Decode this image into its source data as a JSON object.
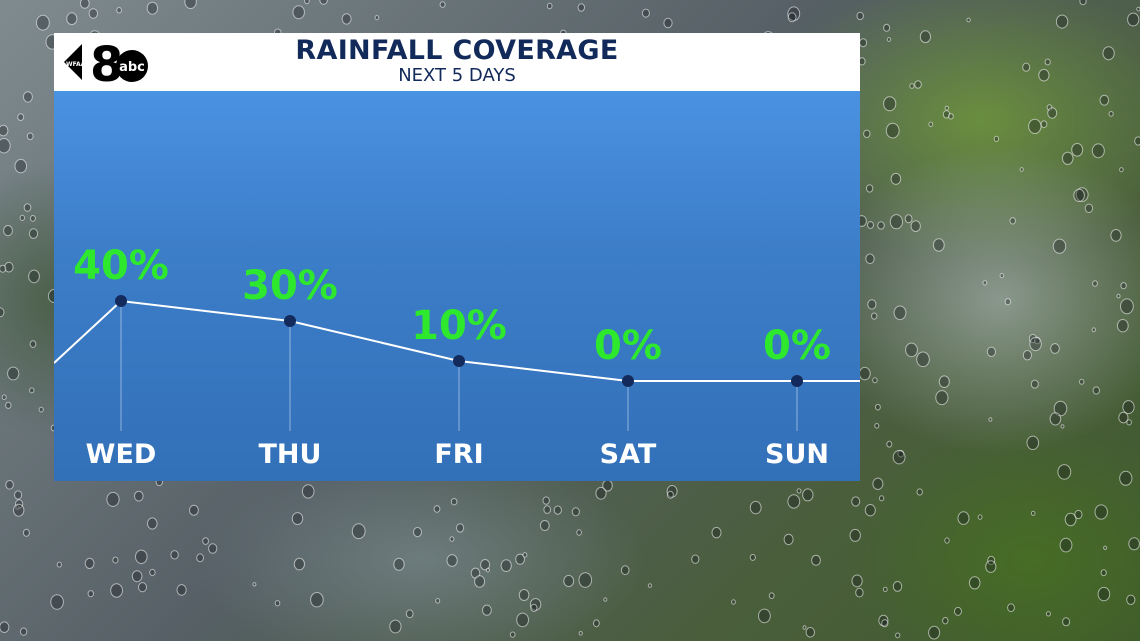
{
  "header": {
    "title": "RAINFALL COVERAGE",
    "subtitle": "NEXT 5 DAYS",
    "logo": {
      "number": "8",
      "station": "WFAA",
      "network": "abc"
    }
  },
  "colors": {
    "header_text": "#122a5a",
    "panel_top": "#4a92e2",
    "panel_bottom": "#3270b8",
    "value_label": "#2ee82e",
    "marker": "#132a5c",
    "line": "#ffffff"
  },
  "chart_data": {
    "type": "line",
    "title": "RAINFALL COVERAGE",
    "subtitle": "NEXT 5 DAYS",
    "categories": [
      "WED",
      "THU",
      "FRI",
      "SAT",
      "SUN"
    ],
    "values": [
      40,
      30,
      10,
      0,
      0
    ],
    "value_labels": [
      "40%",
      "30%",
      "10%",
      "0%",
      "0%"
    ],
    "ylim": [
      0,
      100
    ],
    "grid": false,
    "legend": "none"
  }
}
